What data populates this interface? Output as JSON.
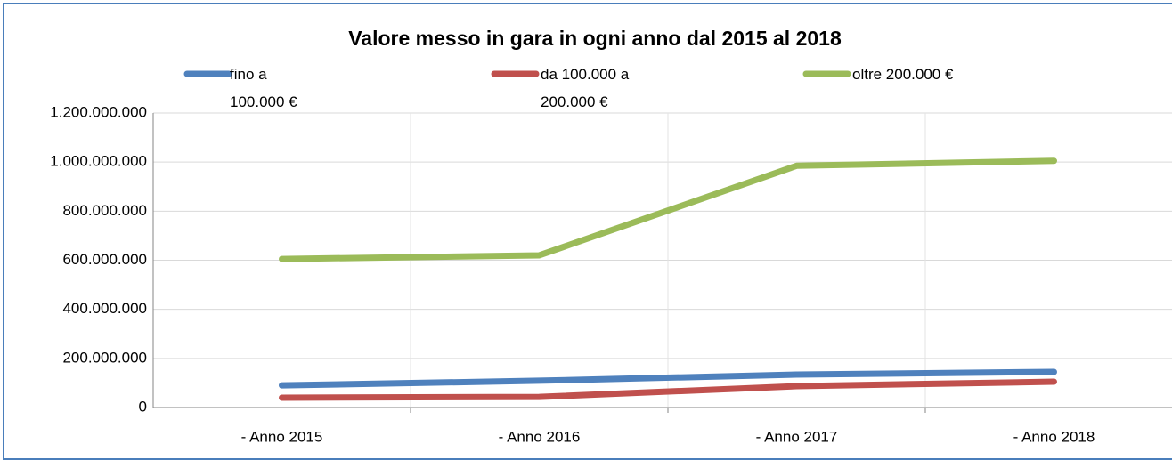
{
  "chart_data": {
    "type": "line",
    "title": "Valore messo in gara in ogni anno dal 2015 al 2018",
    "categories": [
      "- Anno 2015",
      "- Anno 2016",
      "- Anno 2017",
      "- Anno 2018"
    ],
    "series": [
      {
        "name": "fino a 100.000 €",
        "color": "#4f81bd",
        "values": [
          90000000,
          109000000,
          134000000,
          145000000
        ]
      },
      {
        "name": "da 100.000 a 200.000 €",
        "color": "#c0504d",
        "values": [
          40000000,
          43000000,
          87000000,
          105000000
        ]
      },
      {
        "name": "oltre 200.000 €",
        "color": "#9bbb59",
        "values": [
          605000000,
          620000000,
          985000000,
          1005000000
        ]
      }
    ],
    "ylim": [
      0,
      1200000000
    ],
    "yticks": [
      0,
      {
        "value": 200000000,
        "label": "200.000.000"
      },
      {
        "value": 400000000,
        "label": "400.000.000"
      },
      {
        "value": 600000000,
        "label": "600.000.000"
      },
      {
        "value": 800000000,
        "label": "800.000.000"
      },
      {
        "value": 1000000000,
        "label": "1.000.000.000"
      },
      {
        "value": 1200000000,
        "label": "1.200.000.000"
      }
    ],
    "grid": true,
    "legend": "top"
  }
}
